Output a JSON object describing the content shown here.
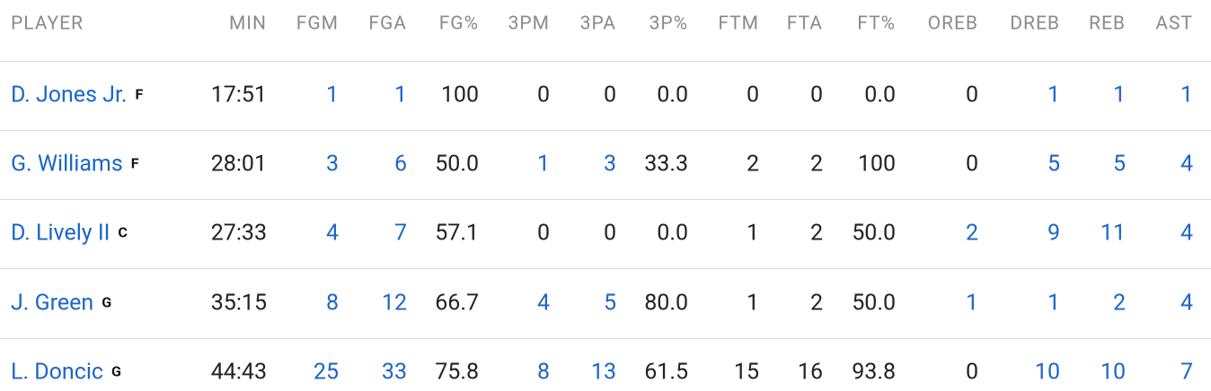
{
  "table": {
    "header": [
      "PLAYER",
      "MIN",
      "FGM",
      "FGA",
      "FG%",
      "3PM",
      "3PA",
      "3P%",
      "FTM",
      "FTA",
      "FT%",
      "OREB",
      "DREB",
      "REB",
      "AST"
    ],
    "rows": [
      {
        "player": "D. Jones Jr.",
        "position": "F",
        "stats": [
          "17:51",
          "1",
          "1",
          "100",
          "0",
          "0",
          "0.0",
          "0",
          "0",
          "0.0",
          "0",
          "1",
          "1",
          "1"
        ]
      },
      {
        "player": "G. Williams",
        "position": "F",
        "stats": [
          "28:01",
          "3",
          "6",
          "50.0",
          "1",
          "3",
          "33.3",
          "2",
          "2",
          "100",
          "0",
          "5",
          "5",
          "4"
        ]
      },
      {
        "player": "D. Lively II",
        "position": "C",
        "stats": [
          "27:33",
          "4",
          "7",
          "57.1",
          "0",
          "0",
          "0.0",
          "1",
          "2",
          "50.0",
          "2",
          "9",
          "11",
          "4"
        ]
      },
      {
        "player": "J. Green",
        "position": "G",
        "stats": [
          "35:15",
          "8",
          "12",
          "66.7",
          "4",
          "5",
          "80.0",
          "1",
          "2",
          "50.0",
          "1",
          "1",
          "2",
          "4"
        ]
      },
      {
        "player": "L. Doncic",
        "position": "G",
        "stats": [
          "44:43",
          "25",
          "33",
          "75.8",
          "8",
          "13",
          "61.5",
          "15",
          "16",
          "93.8",
          "0",
          "10",
          "10",
          "7"
        ]
      }
    ]
  }
}
